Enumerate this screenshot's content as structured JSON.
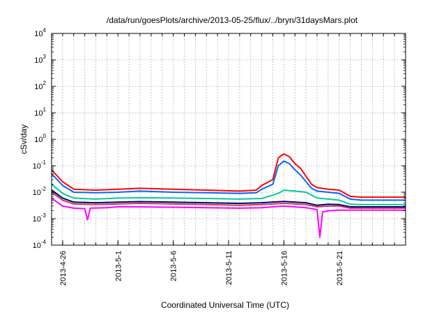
{
  "chart_data": {
    "type": "line",
    "title": "/data/run/goesPlots/archive/2013-05-25/flux/../bryn/31daysMars.plot",
    "xlabel": "Coordinated Universal Time (UTC)",
    "ylabel": "cSv/day",
    "yscale": "log",
    "ylim": [
      0.0001,
      10000
    ],
    "xlim": [
      "2013-04-25T00:00",
      "2013-05-27T00:00"
    ],
    "x_ticks": [
      "2013-4-26",
      "2013-5-1",
      "2013-5-6",
      "2013-5-11",
      "2013-5-16",
      "2013-5-21"
    ],
    "y_ticks": [
      {
        "value": 0.0001,
        "base": "10",
        "exp": "-4"
      },
      {
        "value": 0.001,
        "base": "10",
        "exp": "-3"
      },
      {
        "value": 0.01,
        "base": "10",
        "exp": "-2"
      },
      {
        "value": 0.1,
        "base": "10",
        "exp": "-1"
      },
      {
        "value": 1,
        "base": "10",
        "exp": "0"
      },
      {
        "value": 10,
        "base": "10",
        "exp": "1"
      },
      {
        "value": 100,
        "base": "10",
        "exp": "2"
      },
      {
        "value": 1000,
        "base": "10",
        "exp": "3"
      },
      {
        "value": 10000,
        "base": "10",
        "exp": "4"
      }
    ],
    "grid": true,
    "legend": "none",
    "series": [
      {
        "color": "#ff0000",
        "x": [
          "2013-04-25T00:00",
          "2013-04-26T00:00",
          "2013-04-27T00:00",
          "2013-04-29T00:00",
          "2013-05-01T00:00",
          "2013-05-03T00:00",
          "2013-05-06T00:00",
          "2013-05-09T00:00",
          "2013-05-12T00:00",
          "2013-05-13T12:00",
          "2013-05-14T00:00",
          "2013-05-15T00:00",
          "2013-05-15T12:00",
          "2013-05-16T00:00",
          "2013-05-16T12:00",
          "2013-05-17T00:00",
          "2013-05-17T12:00",
          "2013-05-18T00:00",
          "2013-05-18T12:00",
          "2013-05-19T00:00",
          "2013-05-20T00:00",
          "2013-05-21T00:00",
          "2013-05-22T00:00",
          "2013-05-23T00:00",
          "2013-05-25T00:00",
          "2013-05-27T00:00"
        ],
        "y": [
          0.07,
          0.025,
          0.013,
          0.012,
          0.013,
          0.014,
          0.013,
          0.012,
          0.011,
          0.012,
          0.018,
          0.03,
          0.2,
          0.28,
          0.22,
          0.12,
          0.08,
          0.04,
          0.02,
          0.015,
          0.013,
          0.012,
          0.007,
          0.0065,
          0.0065,
          0.0065
        ]
      },
      {
        "color": "#0066ff",
        "x": [
          "2013-04-25T00:00",
          "2013-04-26T00:00",
          "2013-04-27T00:00",
          "2013-04-29T00:00",
          "2013-05-01T00:00",
          "2013-05-03T00:00",
          "2013-05-06T00:00",
          "2013-05-09T00:00",
          "2013-05-12T00:00",
          "2013-05-13T12:00",
          "2013-05-14T00:00",
          "2013-05-15T00:00",
          "2013-05-15T12:00",
          "2013-05-16T00:00",
          "2013-05-16T12:00",
          "2013-05-17T00:00",
          "2013-05-17T12:00",
          "2013-05-18T00:00",
          "2013-05-18T12:00",
          "2013-05-19T00:00",
          "2013-05-20T00:00",
          "2013-05-21T00:00",
          "2013-05-22T00:00",
          "2013-05-23T00:00",
          "2013-05-25T00:00",
          "2013-05-27T00:00"
        ],
        "y": [
          0.05,
          0.018,
          0.01,
          0.0095,
          0.01,
          0.011,
          0.01,
          0.0095,
          0.009,
          0.0095,
          0.013,
          0.02,
          0.1,
          0.15,
          0.12,
          0.07,
          0.045,
          0.025,
          0.014,
          0.011,
          0.01,
          0.009,
          0.0055,
          0.005,
          0.005,
          0.005
        ]
      },
      {
        "color": "#00cc99",
        "x": [
          "2013-04-25T00:00",
          "2013-04-26T00:00",
          "2013-04-27T00:00",
          "2013-04-29T00:00",
          "2013-05-01T00:00",
          "2013-05-03T00:00",
          "2013-05-06T00:00",
          "2013-05-09T00:00",
          "2013-05-12T00:00",
          "2013-05-14T00:00",
          "2013-05-15T12:00",
          "2013-05-16T00:00",
          "2013-05-17T00:00",
          "2013-05-18T00:00",
          "2013-05-19T00:00",
          "2013-05-20T00:00",
          "2013-05-21T00:00",
          "2013-05-22T00:00",
          "2013-05-23T00:00",
          "2013-05-25T00:00",
          "2013-05-27T00:00"
        ],
        "y": [
          0.02,
          0.009,
          0.006,
          0.0055,
          0.006,
          0.0062,
          0.006,
          0.0058,
          0.0055,
          0.0058,
          0.009,
          0.012,
          0.011,
          0.01,
          0.006,
          0.0055,
          0.005,
          0.0035,
          0.0034,
          0.0034,
          0.0034
        ]
      },
      {
        "color": "#000066",
        "x": [
          "2013-04-25T00:00",
          "2013-04-26T00:00",
          "2013-04-27T00:00",
          "2013-04-29T00:00",
          "2013-05-01T00:00",
          "2013-05-03T00:00",
          "2013-05-06T00:00",
          "2013-05-09T00:00",
          "2013-05-12T00:00",
          "2013-05-14T00:00",
          "2013-05-16T00:00",
          "2013-05-18T00:00",
          "2013-05-19T00:00",
          "2013-05-20T00:00",
          "2013-05-21T00:00",
          "2013-05-22T00:00",
          "2013-05-23T00:00",
          "2013-05-25T00:00",
          "2013-05-27T00:00"
        ],
        "y": [
          0.012,
          0.006,
          0.0042,
          0.004,
          0.0042,
          0.0044,
          0.0042,
          0.004,
          0.0038,
          0.004,
          0.0045,
          0.004,
          0.0032,
          0.0035,
          0.0034,
          0.0028,
          0.0028,
          0.0028,
          0.0028
        ]
      },
      {
        "color": "#cc3366",
        "x": [
          "2013-04-25T00:00",
          "2013-04-26T00:00",
          "2013-04-27T00:00",
          "2013-04-29T00:00",
          "2013-05-01T00:00",
          "2013-05-03T00:00",
          "2013-05-06T00:00",
          "2013-05-09T00:00",
          "2013-05-12T00:00",
          "2013-05-14T00:00",
          "2013-05-16T00:00",
          "2013-05-18T00:00",
          "2013-05-19T00:00",
          "2013-05-20T00:00",
          "2013-05-21T00:00",
          "2013-05-22T00:00",
          "2013-05-23T00:00",
          "2013-05-25T00:00",
          "2013-05-27T00:00"
        ],
        "y": [
          0.01,
          0.005,
          0.0036,
          0.0034,
          0.0036,
          0.0038,
          0.0036,
          0.0034,
          0.0032,
          0.0034,
          0.0038,
          0.0034,
          0.0028,
          0.003,
          0.003,
          0.0025,
          0.0025,
          0.0025,
          0.0025
        ]
      },
      {
        "color": "#ff00ff",
        "x": [
          "2013-04-25T00:00",
          "2013-04-26T00:00",
          "2013-04-27T00:00",
          "2013-04-28T00:00",
          "2013-04-28T06:00",
          "2013-04-28T12:00",
          "2013-04-30T00:00",
          "2013-05-01T00:00",
          "2013-05-03T00:00",
          "2013-05-06T00:00",
          "2013-05-09T00:00",
          "2013-05-12T00:00",
          "2013-05-14T00:00",
          "2013-05-15T00:00",
          "2013-05-16T00:00",
          "2013-05-17T00:00",
          "2013-05-18T00:00",
          "2013-05-19T00:00",
          "2013-05-19T06:00",
          "2013-05-19T12:00",
          "2013-05-20T00:00",
          "2013-05-21T00:00",
          "2013-05-22T00:00",
          "2013-05-23T00:00",
          "2013-05-25T00:00",
          "2013-05-27T00:00"
        ],
        "y": [
          0.006,
          0.003,
          0.0025,
          0.0024,
          0.0009,
          0.0025,
          0.0026,
          0.0028,
          0.0028,
          0.0027,
          0.0026,
          0.0025,
          0.0026,
          0.0028,
          0.003,
          0.0028,
          0.0026,
          0.0022,
          0.0002,
          0.0018,
          0.002,
          0.0021,
          0.0021,
          0.0021,
          0.0021,
          0.0021
        ]
      }
    ]
  }
}
